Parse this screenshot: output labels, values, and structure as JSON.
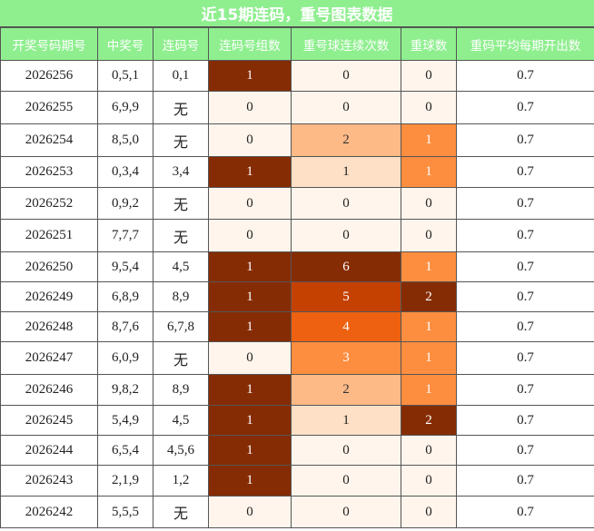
{
  "title": "近15期连码，重号图表数据",
  "headers": [
    "开奖号码期号",
    "中奖号",
    "连码号",
    "连码号组数",
    "重号球连续次数",
    "重球数",
    "重码平均每期开出数"
  ],
  "rows": [
    {
      "period": "2026256",
      "numbers": "0,5,1",
      "consecutive": "0,1",
      "groups": "1",
      "repeat_run": "0",
      "repeat_count": "0",
      "avg": "0.7"
    },
    {
      "period": "2026255",
      "numbers": "6,9,9",
      "consecutive": "无",
      "groups": "0",
      "repeat_run": "0",
      "repeat_count": "0",
      "avg": "0.7"
    },
    {
      "period": "2026254",
      "numbers": "8,5,0",
      "consecutive": "无",
      "groups": "0",
      "repeat_run": "2",
      "repeat_count": "1",
      "avg": "0.7"
    },
    {
      "period": "2026253",
      "numbers": "0,3,4",
      "consecutive": "3,4",
      "groups": "1",
      "repeat_run": "1",
      "repeat_count": "1",
      "avg": "0.7"
    },
    {
      "period": "2026252",
      "numbers": "0,9,2",
      "consecutive": "无",
      "groups": "0",
      "repeat_run": "0",
      "repeat_count": "0",
      "avg": "0.7"
    },
    {
      "period": "2026251",
      "numbers": "7,7,7",
      "consecutive": "无",
      "groups": "0",
      "repeat_run": "0",
      "repeat_count": "0",
      "avg": "0.7"
    },
    {
      "period": "2026250",
      "numbers": "9,5,4",
      "consecutive": "4,5",
      "groups": "1",
      "repeat_run": "6",
      "repeat_count": "1",
      "avg": "0.7"
    },
    {
      "period": "2026249",
      "numbers": "6,8,9",
      "consecutive": "8,9",
      "groups": "1",
      "repeat_run": "5",
      "repeat_count": "2",
      "avg": "0.7"
    },
    {
      "period": "2026248",
      "numbers": "8,7,6",
      "consecutive": "6,7,8",
      "groups": "1",
      "repeat_run": "4",
      "repeat_count": "1",
      "avg": "0.7"
    },
    {
      "period": "2026247",
      "numbers": "6,0,9",
      "consecutive": "无",
      "groups": "0",
      "repeat_run": "3",
      "repeat_count": "1",
      "avg": "0.7"
    },
    {
      "period": "2026246",
      "numbers": "9,8,2",
      "consecutive": "8,9",
      "groups": "1",
      "repeat_run": "2",
      "repeat_count": "1",
      "avg": "0.7"
    },
    {
      "period": "2026245",
      "numbers": "5,4,9",
      "consecutive": "4,5",
      "groups": "1",
      "repeat_run": "1",
      "repeat_count": "2",
      "avg": "0.7"
    },
    {
      "period": "2026244",
      "numbers": "6,5,4",
      "consecutive": "4,5,6",
      "groups": "1",
      "repeat_run": "0",
      "repeat_count": "0",
      "avg": "0.7"
    },
    {
      "period": "2026243",
      "numbers": "2,1,9",
      "consecutive": "1,2",
      "groups": "1",
      "repeat_run": "0",
      "repeat_count": "0",
      "avg": "0.7"
    },
    {
      "period": "2026242",
      "numbers": "5,5,5",
      "consecutive": "无",
      "groups": "0",
      "repeat_run": "0",
      "repeat_count": "0",
      "avg": "0.7"
    }
  ],
  "colors": {
    "header_bg": "#8fef8f",
    "header_text": "#ffffff",
    "groups": {
      "0": "#fff5ec",
      "1": "#862c04"
    },
    "repeat_run": {
      "0": "#fff5ec",
      "1": "#fde0c6",
      "2": "#fdba87",
      "3": "#fd8e3f",
      "4": "#ed6110",
      "5": "#c54102",
      "6": "#862c04"
    },
    "repeat_count": {
      "0": "#fff5ec",
      "1": "#fd8e3f",
      "2": "#862c04"
    }
  }
}
